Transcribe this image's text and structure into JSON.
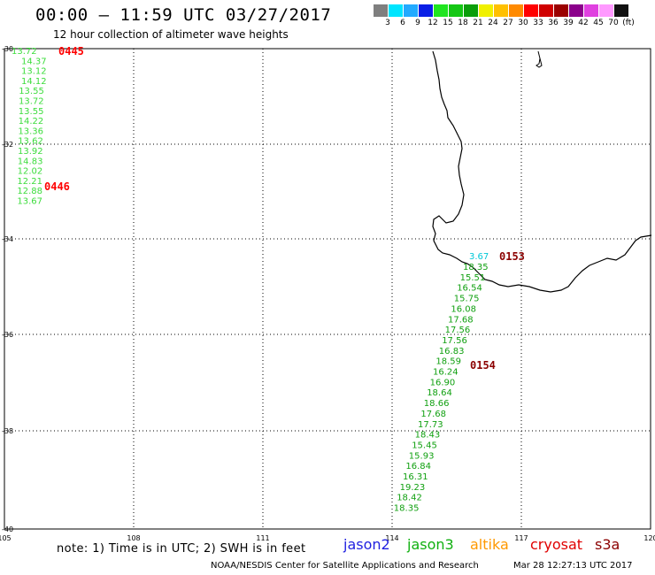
{
  "header": {
    "title": "00:00 – 11:59 UTC 03/27/2017",
    "subtitle": "12 hour collection of altimeter wave heights"
  },
  "color_scale": {
    "colors": [
      "#7f7f7f",
      "#00e5ff",
      "#22aaff",
      "#0a1fe6",
      "#1fe51f",
      "#14c714",
      "#0a9e0a",
      "#f0f000",
      "#ffc000",
      "#ff8a00",
      "#ff0000",
      "#d00000",
      "#9b0000",
      "#8b008b",
      "#e040e0",
      "#ff99ff",
      "#111111"
    ],
    "labels": [
      "3",
      "6",
      "9",
      "12",
      "15",
      "18",
      "21",
      "24",
      "27",
      "30",
      "33",
      "36",
      "39",
      "42",
      "45",
      "70",
      "(ft)"
    ]
  },
  "map": {
    "lat_labels": [
      "-30",
      "-32",
      "-34",
      "-36",
      "-38",
      "-40"
    ],
    "lon_labels": [
      "105",
      "108",
      "111",
      "114",
      "117",
      "120"
    ],
    "pass_labels": [
      {
        "text": "0445",
        "color": "#ff0000"
      },
      {
        "text": "0446",
        "color": "#ff0000"
      },
      {
        "text": "0153",
        "color": "#8b0000"
      },
      {
        "text": "0154",
        "color": "#8b0000"
      }
    ],
    "track_west": [
      "13.72",
      "14.37",
      "13.12",
      "14.12",
      "13.55",
      "13.72",
      "13.55",
      "14.22",
      "13.36",
      "13.62",
      "13.92",
      "14.83",
      "12.02",
      "12.21",
      "12.88",
      "13.67"
    ],
    "track_west_color": "#3cdc3c",
    "track_south_first": {
      "text": "3.67",
      "color": "#00c8d8"
    },
    "track_south": [
      "18.35",
      "15.51",
      "16.54",
      "15.75",
      "16.08",
      "17.68",
      "17.56",
      "17.56",
      "16.83",
      "18.59",
      "16.24",
      "16.90",
      "18.64",
      "18.66",
      "17.68",
      "17.73",
      "18.43",
      "15.45",
      "15.93",
      "16.84",
      "16.31",
      "19.23",
      "18.42",
      "18.35"
    ],
    "track_south_color": "#10a010"
  },
  "footer": {
    "note": "note: 1) Time is in UTC; 2) SWH is in feet",
    "legend": [
      {
        "name": "jason2",
        "color": "#1f1fe0"
      },
      {
        "name": "jason3",
        "color": "#10b010"
      },
      {
        "name": "altika",
        "color": "#ff9900"
      },
      {
        "name": "cryosat",
        "color": "#e00000"
      },
      {
        "name": "s3a",
        "color": "#8b0000"
      }
    ],
    "credit": "NOAA/NESDIS Center for Satellite Applications and Research",
    "timestamp": "Mar 28 12:27:13 UTC 2017"
  }
}
